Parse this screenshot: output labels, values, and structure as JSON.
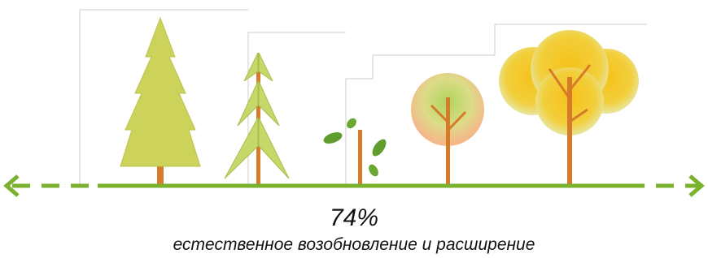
{
  "stat": {
    "value": "74%",
    "caption": "естественное возобновление и расширение"
  }
}
